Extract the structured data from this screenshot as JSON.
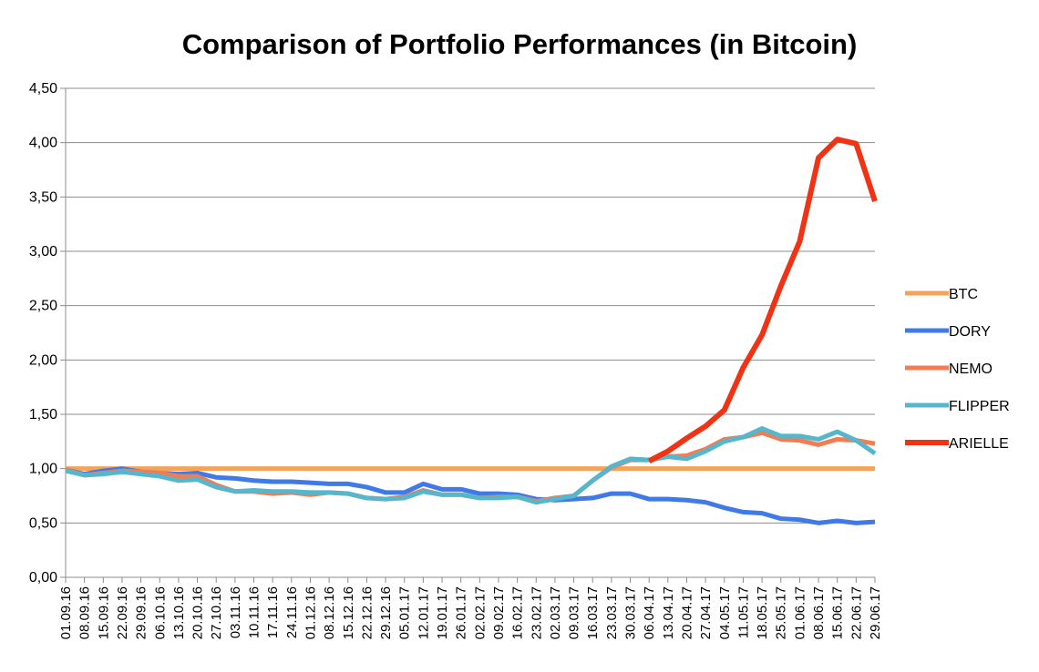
{
  "chart_data": {
    "type": "line",
    "title": "Comparison of Portfolio Performances (in Bitcoin)",
    "xlabel": "",
    "ylabel": "",
    "ylim": [
      0,
      4.5
    ],
    "y_ticks": [
      "0,00",
      "0,50",
      "1,00",
      "1,50",
      "2,00",
      "2,50",
      "3,00",
      "3,50",
      "4,00",
      "4,50"
    ],
    "y_tick_values": [
      0,
      0.5,
      1.0,
      1.5,
      2.0,
      2.5,
      3.0,
      3.5,
      4.0,
      4.5
    ],
    "grid": true,
    "legend_position": "right",
    "categories": [
      "01.09.16",
      "08.09.16",
      "15.09.16",
      "22.09.16",
      "29.09.16",
      "06.10.16",
      "13.10.16",
      "20.10.16",
      "27.10.16",
      "03.11.16",
      "10.11.16",
      "17.11.16",
      "24.11.16",
      "01.12.16",
      "08.12.16",
      "15.12.16",
      "22.12.16",
      "29.12.16",
      "05.01.17",
      "12.01.17",
      "19.01.17",
      "26.01.17",
      "02.02.17",
      "09.02.17",
      "16.02.17",
      "23.02.17",
      "02.03.17",
      "09.03.17",
      "16.03.17",
      "23.03.17",
      "30.03.17",
      "06.04.17",
      "13.04.17",
      "20.04.17",
      "27.04.17",
      "04.05.17",
      "11.05.17",
      "18.05.17",
      "25.05.17",
      "01.06.17",
      "08.06.17",
      "15.06.17",
      "22.06.17",
      "29.06.17"
    ],
    "series": [
      {
        "name": "BTC",
        "color": "#f4a35a",
        "values": [
          1.0,
          1.0,
          1.0,
          1.0,
          1.0,
          1.0,
          1.0,
          1.0,
          1.0,
          1.0,
          1.0,
          1.0,
          1.0,
          1.0,
          1.0,
          1.0,
          1.0,
          1.0,
          1.0,
          1.0,
          1.0,
          1.0,
          1.0,
          1.0,
          1.0,
          1.0,
          1.0,
          1.0,
          1.0,
          1.0,
          1.0,
          1.0,
          1.0,
          1.0,
          1.0,
          1.0,
          1.0,
          1.0,
          1.0,
          1.0,
          1.0,
          1.0,
          1.0,
          1.0
        ]
      },
      {
        "name": "DORY",
        "color": "#3f7ae8",
        "values": [
          0.99,
          0.95,
          0.98,
          1.0,
          0.97,
          0.96,
          0.95,
          0.96,
          0.92,
          0.91,
          0.89,
          0.88,
          0.88,
          0.87,
          0.86,
          0.86,
          0.83,
          0.78,
          0.78,
          0.86,
          0.81,
          0.81,
          0.77,
          0.77,
          0.76,
          0.72,
          0.71,
          0.72,
          0.73,
          0.77,
          0.77,
          0.72,
          0.72,
          0.71,
          0.69,
          0.64,
          0.6,
          0.59,
          0.54,
          0.53,
          0.5,
          0.52,
          0.5,
          0.51
        ]
      },
      {
        "name": "NEMO",
        "color": "#f47c53",
        "values": [
          0.99,
          0.94,
          0.96,
          0.98,
          0.97,
          0.96,
          0.93,
          0.93,
          0.85,
          0.79,
          0.79,
          0.77,
          0.78,
          0.76,
          0.78,
          0.77,
          0.73,
          0.72,
          0.74,
          0.8,
          0.76,
          0.76,
          0.73,
          0.74,
          0.74,
          0.7,
          0.73,
          0.75,
          0.89,
          1.01,
          1.08,
          1.08,
          1.11,
          1.12,
          1.18,
          1.27,
          1.29,
          1.33,
          1.27,
          1.26,
          1.22,
          1.27,
          1.26,
          1.23
        ]
      },
      {
        "name": "FLIPPER",
        "color": "#56b7cc",
        "values": [
          0.98,
          0.94,
          0.95,
          0.97,
          0.95,
          0.93,
          0.89,
          0.9,
          0.83,
          0.79,
          0.8,
          0.79,
          0.79,
          0.78,
          0.78,
          0.77,
          0.73,
          0.72,
          0.73,
          0.79,
          0.76,
          0.76,
          0.73,
          0.73,
          0.74,
          0.69,
          0.72,
          0.75,
          0.89,
          1.02,
          1.09,
          1.08,
          1.11,
          1.09,
          1.16,
          1.25,
          1.29,
          1.37,
          1.3,
          1.3,
          1.27,
          1.34,
          1.26,
          1.14
        ]
      },
      {
        "name": "ARIELLE",
        "color": "#f03215",
        "values": [
          null,
          null,
          null,
          null,
          null,
          null,
          null,
          null,
          null,
          null,
          null,
          null,
          null,
          null,
          null,
          null,
          null,
          null,
          null,
          null,
          null,
          null,
          null,
          null,
          null,
          null,
          null,
          null,
          null,
          null,
          null,
          1.07,
          1.16,
          1.28,
          1.39,
          1.54,
          1.93,
          2.23,
          2.68,
          3.09,
          3.86,
          4.03,
          3.99,
          3.46
        ]
      }
    ]
  }
}
